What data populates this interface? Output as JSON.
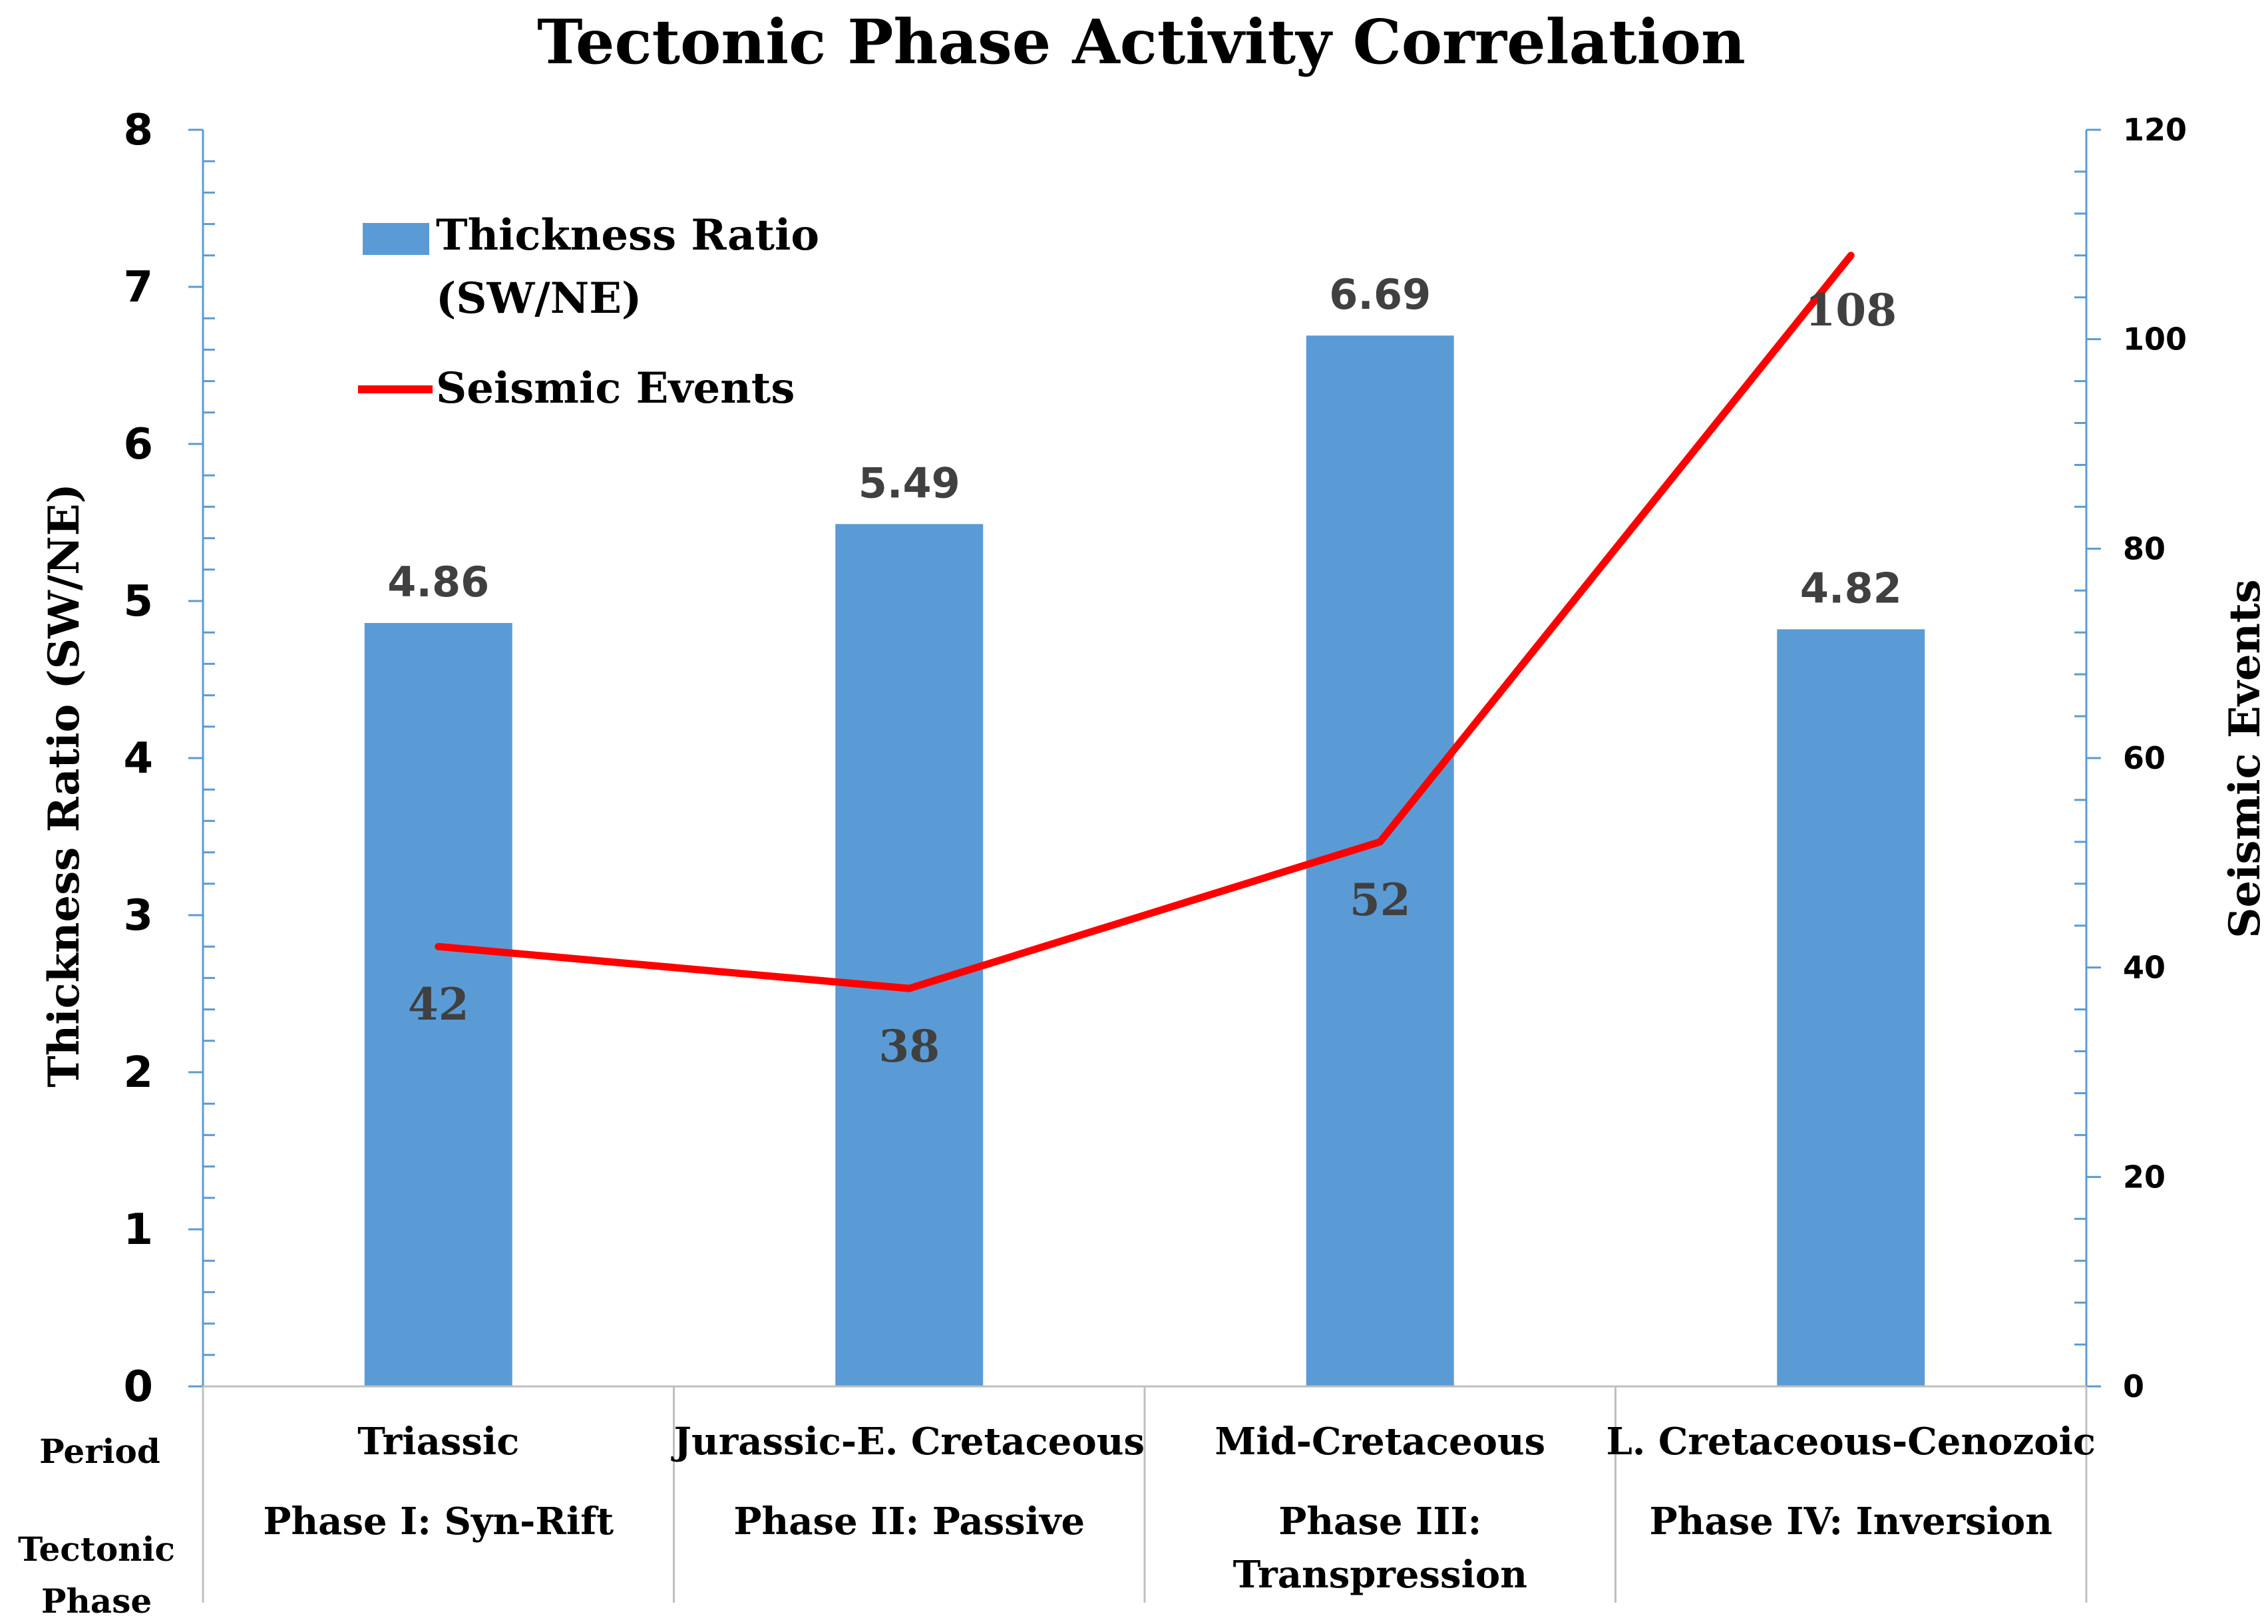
{
  "chart_data": {
    "type": "bar+line",
    "title": "Tectonic Phase Activity Correlation",
    "categories": [
      "Triassic",
      "Jurassic-E. Cretaceous",
      "Mid-Cretaceous",
      "L. Cretaceous-Cenozoic"
    ],
    "phases": [
      "Phase I: Syn-Rift",
      "Phase II: Passive",
      "Phase III: Transpression",
      "Phase IV: Inversion"
    ],
    "row_labels": {
      "period": "Period",
      "phase": "Tectonic Phase"
    },
    "series": [
      {
        "name": "Thickness Ratio (SW/NE)",
        "type": "bar",
        "axis": "left",
        "values": [
          4.86,
          5.49,
          6.69,
          4.82
        ]
      },
      {
        "name": "Seismic Events",
        "type": "line",
        "axis": "right",
        "values": [
          42,
          38,
          52,
          108
        ]
      }
    ],
    "y_left": {
      "label": "Thickness Ratio (SW/NE)",
      "min": 0,
      "max": 8,
      "ticks": [
        "0",
        "1",
        "2",
        "3",
        "4",
        "5",
        "6",
        "7",
        "8"
      ]
    },
    "y_right": {
      "label": "Seismic Events",
      "min": 0,
      "max": 120,
      "ticks": [
        "0",
        "20",
        "40",
        "60",
        "80",
        "100",
        "120"
      ]
    },
    "legend": {
      "position": "top-left",
      "labels": [
        "Thickness Ratio",
        "(SW/NE)",
        "Seismic Events"
      ]
    },
    "colors": {
      "bar": "#5b9bd5",
      "line": "#ff0000",
      "axis": "#5b9bd5",
      "bar_label": "#404040",
      "line_label": "#404040",
      "grid_line": "#bfbfbf"
    }
  }
}
